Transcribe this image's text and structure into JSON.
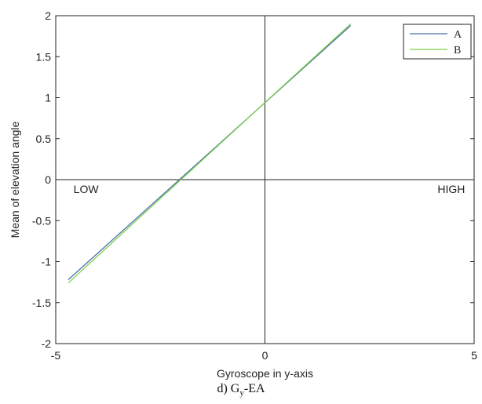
{
  "chart_data": {
    "type": "line",
    "title": "",
    "xlabel": "Gyroscope in y-axis",
    "ylabel": "Mean of elevation angle",
    "xlim": [
      -5,
      5
    ],
    "ylim": [
      -2,
      2
    ],
    "xticks": [
      -5,
      0,
      5
    ],
    "yticks": [
      -2,
      -1.5,
      -1,
      -0.5,
      0,
      0.5,
      1,
      1.5,
      2
    ],
    "grid": false,
    "legend_position": "top-right",
    "series": [
      {
        "name": "A",
        "color": "#4a6fa5",
        "x": [
          -4.7,
          2.05
        ],
        "y": [
          -1.22,
          1.88
        ]
      },
      {
        "name": "B",
        "color": "#7ccf4e",
        "x": [
          -4.7,
          2.05
        ],
        "y": [
          -1.26,
          1.9
        ]
      }
    ],
    "annotations": [
      {
        "text": "LOW",
        "x": -4.8,
        "y": -0.05
      },
      {
        "text": "HIGH",
        "x": 3.9,
        "y": -0.05
      }
    ]
  },
  "caption": {
    "prefix": "d) G",
    "subscript": "y",
    "suffix": "-EA"
  }
}
